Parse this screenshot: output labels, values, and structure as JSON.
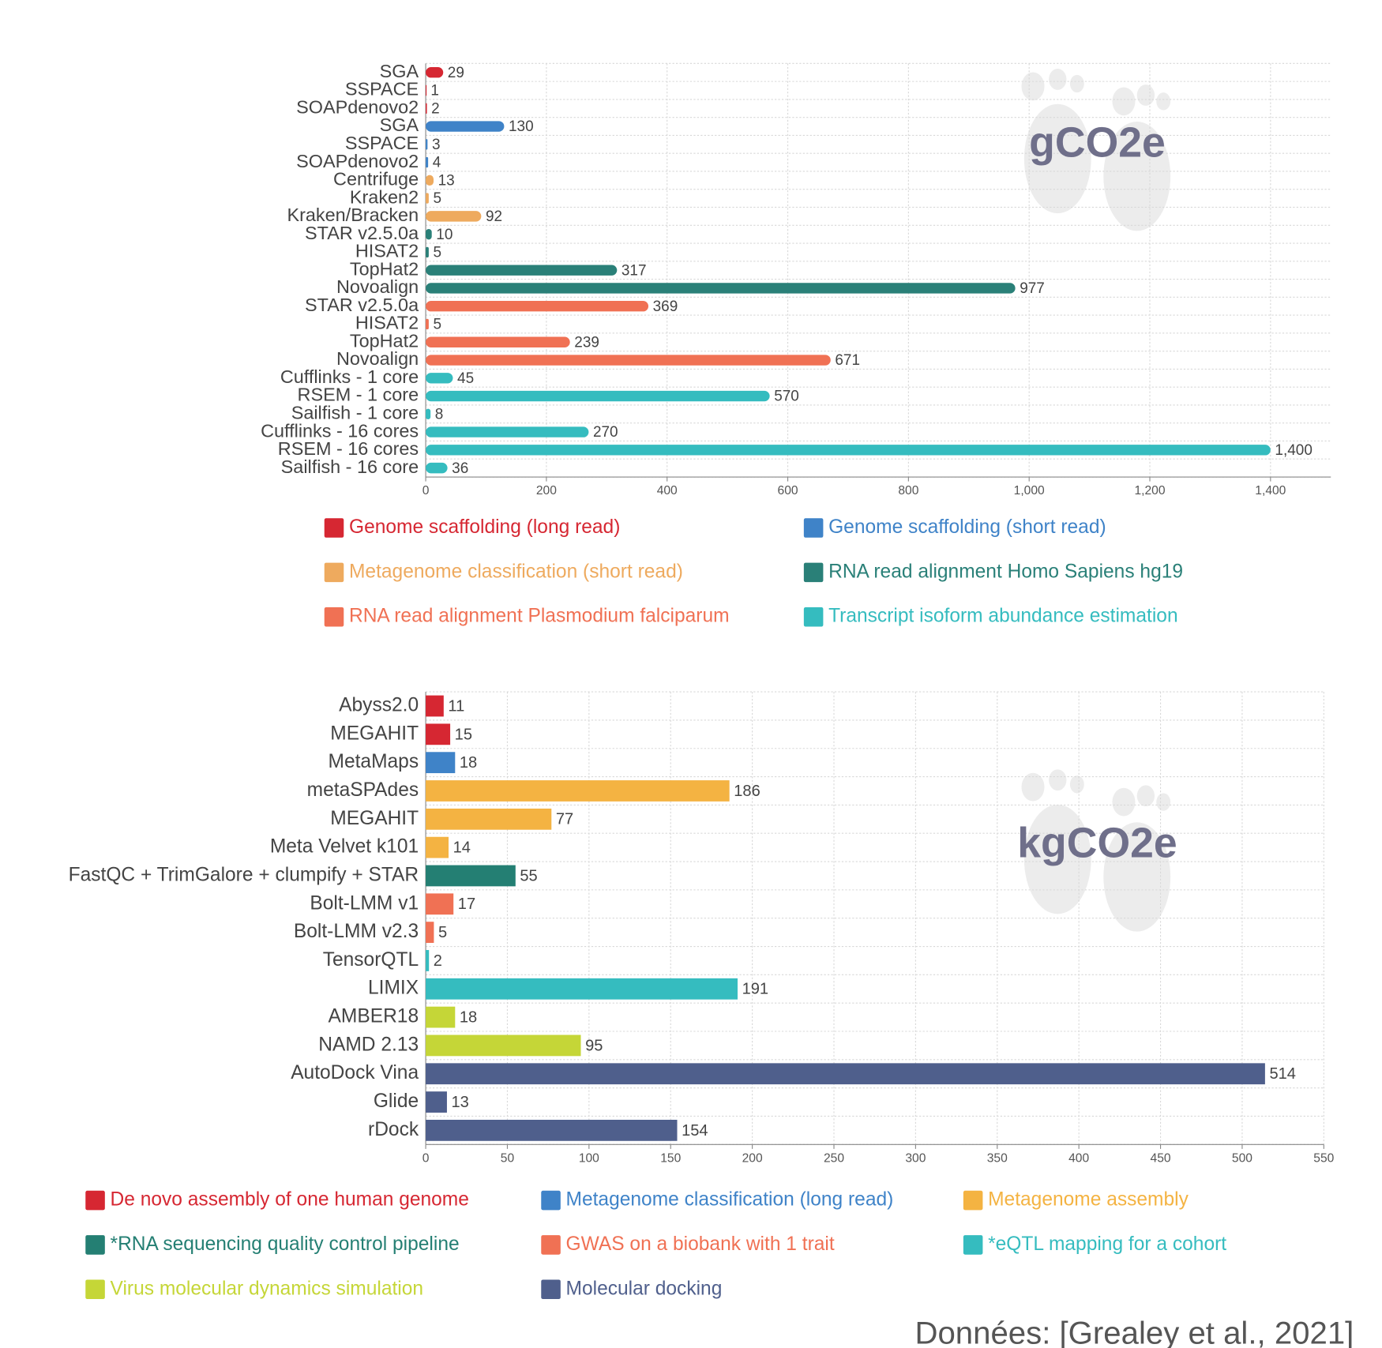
{
  "chart_data": [
    {
      "type": "bar",
      "orientation": "horizontal",
      "annotation": "gCO2e",
      "series": [
        {
          "name": "Genome scaffolding (long read)",
          "color": "#d62732",
          "categories": [
            "SGA",
            "SSPACE",
            "SOAPdenovo2"
          ],
          "values": [
            29,
            1,
            2
          ]
        },
        {
          "name": "Genome scaffolding (short read)",
          "color": "#3f83c8",
          "categories": [
            "SGA",
            "SSPACE",
            "SOAPdenovo2"
          ],
          "values": [
            130,
            3,
            4
          ]
        },
        {
          "name": "Metagenome classification (short read)",
          "color": "#eeaa5e",
          "categories": [
            "Centrifuge",
            "Kraken2",
            "Kraken/Bracken"
          ],
          "values": [
            13,
            5,
            92
          ]
        },
        {
          "name": "RNA read alignment Homo Sapiens hg19",
          "color": "#2a8078",
          "categories": [
            "STAR v2.5.0a",
            "HISAT2",
            "TopHat2",
            "Novoalign"
          ],
          "values": [
            10,
            5,
            317,
            977
          ]
        },
        {
          "name": "RNA read alignment Plasmodium falciparum",
          "color": "#f07154",
          "categories": [
            "STAR v2.5.0a",
            "HISAT2",
            "TopHat2",
            "Novoalign"
          ],
          "values": [
            369,
            5,
            239,
            671
          ]
        },
        {
          "name": "Transcript isoform abundance estimation",
          "color": "#35bcbf",
          "categories": [
            "Cufflinks - 1 core",
            "RSEM - 1 core",
            "Sailfish - 1 core",
            "Cufflinks - 16 cores",
            "RSEM - 16 cores",
            "Sailfish - 16 core"
          ],
          "values": [
            45,
            570,
            8,
            270,
            1400,
            36
          ],
          "value_labels": [
            "45",
            "570",
            "8",
            "270",
            "1,400",
            "36"
          ]
        }
      ],
      "xlim": [
        0,
        1500
      ],
      "xticks": [
        0,
        200,
        400,
        600,
        800,
        {
          "value": 1000,
          "label": "1,000"
        },
        {
          "value": 1200,
          "label": "1,200"
        },
        {
          "value": 1400,
          "label": "1,400"
        }
      ],
      "grid": true
    },
    {
      "type": "bar",
      "orientation": "horizontal",
      "annotation": "kgCO2e",
      "series": [
        {
          "name": "De novo assembly of one human genome",
          "color": "#d62732",
          "categories": [
            "Abyss2.0",
            "MEGAHIT"
          ],
          "values": [
            11,
            15
          ]
        },
        {
          "name": "Metagenome classification (long read)",
          "color": "#3f83c8",
          "categories": [
            "MetaMaps"
          ],
          "values": [
            18
          ]
        },
        {
          "name": "Metagenome assembly",
          "color": "#f4b342",
          "categories": [
            "metaSPAdes",
            "MEGAHIT",
            "Meta Velvet k101"
          ],
          "values": [
            186,
            77,
            14
          ]
        },
        {
          "name": "*RNA sequencing quality control pipeline",
          "color": "#247f73",
          "categories": [
            "FastQC + TrimGalore + clumpify + STAR"
          ],
          "values": [
            55
          ]
        },
        {
          "name": "GWAS on a biobank with 1 trait",
          "color": "#f07154",
          "categories": [
            "Bolt-LMM v1",
            "Bolt-LMM v2.3"
          ],
          "values": [
            17,
            5
          ]
        },
        {
          "name": "*eQTL mapping for a cohort",
          "color": "#35bcbf",
          "categories": [
            "TensorQTL",
            "LIMIX"
          ],
          "values": [
            2,
            191
          ]
        },
        {
          "name": "Virus molecular dynamics simulation",
          "color": "#c5d637",
          "categories": [
            "AMBER18",
            "NAMD 2.13"
          ],
          "values": [
            18,
            95
          ]
        },
        {
          "name": "Molecular docking",
          "color": "#4f5f8c",
          "categories": [
            "AutoDock Vina",
            "Glide",
            "rDock"
          ],
          "values": [
            514,
            13,
            154
          ]
        }
      ],
      "xlim": [
        0,
        550
      ],
      "xticks": [
        0,
        50,
        100,
        150,
        200,
        250,
        300,
        350,
        400,
        450,
        500,
        550
      ],
      "grid": true
    }
  ],
  "source": "Données: [Grealey et al., 2021]"
}
